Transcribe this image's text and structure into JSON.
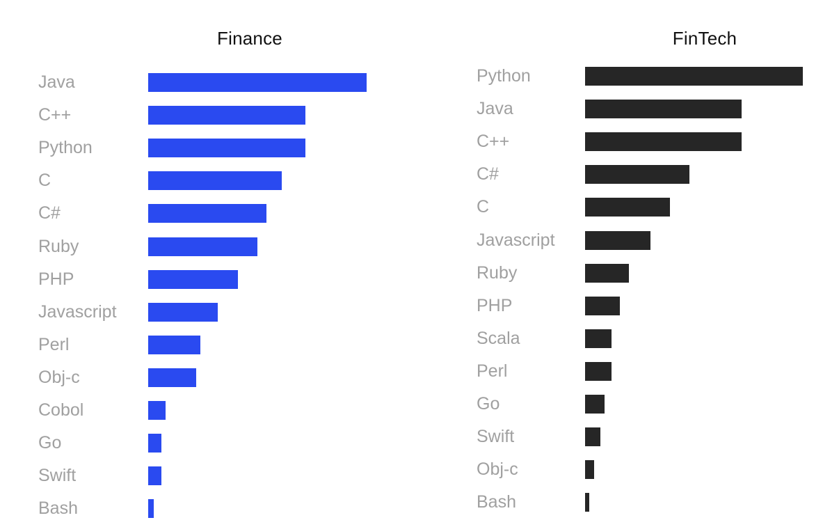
{
  "page": {
    "background": "#ffffff"
  },
  "theme": {
    "title_color": "#111111",
    "label_color": "#a0a0a0"
  },
  "chart_data": [
    {
      "type": "bar",
      "orientation": "horizontal",
      "title": "Finance",
      "categories": [
        "Java",
        "C++",
        "Python",
        "C",
        "C#",
        "Ruby",
        "PHP",
        "Javascript",
        "Perl",
        "Obj-c",
        "Cobol",
        "Go",
        "Swift",
        "Bash"
      ],
      "values": [
        100,
        72,
        72,
        61,
        54,
        50,
        41,
        32,
        24,
        22,
        8,
        6,
        6,
        2.5
      ],
      "value_units": "percent of longest bar (no numeric axis shown)",
      "xlim": [
        0,
        100
      ],
      "bar_color": "#2a4af0",
      "grid": false,
      "legend": false,
      "axis_ticks": "none"
    },
    {
      "type": "bar",
      "orientation": "horizontal",
      "title": "FinTech",
      "categories": [
        "Python",
        "Java",
        "C++",
        "C#",
        "C",
        "Javascript",
        "Ruby",
        "PHP",
        "Scala",
        "Perl",
        "Go",
        "Swift",
        "Obj-c",
        "Bash"
      ],
      "values": [
        100,
        72,
        72,
        48,
        39,
        30,
        20,
        16,
        12,
        12,
        9,
        7,
        4,
        2
      ],
      "value_units": "percent of longest bar (no numeric axis shown)",
      "xlim": [
        0,
        100
      ],
      "bar_color": "#262626",
      "grid": false,
      "legend": false,
      "axis_ticks": "none"
    }
  ]
}
